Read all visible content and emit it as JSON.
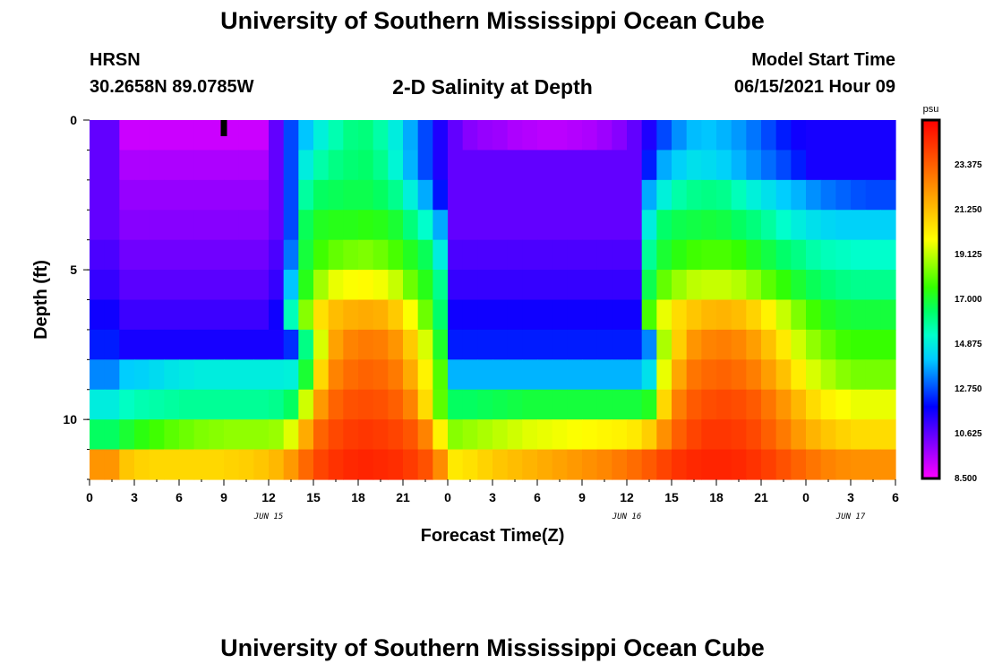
{
  "header": {
    "title_top": "University of Southern Mississippi Ocean Cube",
    "station": "HRSN",
    "coords": "30.2658N  89.0785W",
    "chart_title": "2-D Salinity at Depth",
    "model_start_label": "Model Start Time",
    "model_start_value": "06/15/2021 Hour 09"
  },
  "footer": {
    "title_bottom": "University of Southern Mississippi Ocean Cube"
  },
  "chart_data": {
    "type": "heatmap",
    "title": "2-D Salinity at Depth",
    "xlabel": "Forecast Time(Z)",
    "ylabel": "Depth (ft)",
    "x_hours": [
      0,
      54
    ],
    "y_depth_ft": [
      0,
      12
    ],
    "x_ticks": [
      {
        "h": 0,
        "label": "0"
      },
      {
        "h": 3,
        "label": "3"
      },
      {
        "h": 6,
        "label": "6"
      },
      {
        "h": 9,
        "label": "9"
      },
      {
        "h": 12,
        "label": "12"
      },
      {
        "h": 15,
        "label": "15"
      },
      {
        "h": 18,
        "label": "18"
      },
      {
        "h": 21,
        "label": "21"
      },
      {
        "h": 24,
        "label": "0"
      },
      {
        "h": 27,
        "label": "3"
      },
      {
        "h": 30,
        "label": "6"
      },
      {
        "h": 33,
        "label": "9"
      },
      {
        "h": 36,
        "label": "12"
      },
      {
        "h": 39,
        "label": "15"
      },
      {
        "h": 42,
        "label": "18"
      },
      {
        "h": 45,
        "label": "21"
      },
      {
        "h": 48,
        "label": "0"
      },
      {
        "h": 51,
        "label": "3"
      },
      {
        "h": 54,
        "label": "6"
      }
    ],
    "date_labels": [
      {
        "h": 12,
        "label": "JUN 15"
      },
      {
        "h": 36,
        "label": "JUN 16"
      },
      {
        "h": 51,
        "label": "JUN 17"
      }
    ],
    "y_ticks": [
      {
        "depth": 0,
        "label": "0"
      },
      {
        "depth": 5,
        "label": "5"
      },
      {
        "depth": 10,
        "label": "10"
      }
    ],
    "current_time_marker_h": 9,
    "colorbar": {
      "units": "psu",
      "min": 8.5,
      "max": 25.5,
      "tick_labels": [
        "8.500",
        "10.625",
        "12.750",
        "14.875",
        "17.000",
        "19.125",
        "21.250",
        "23.375"
      ],
      "colors": [
        "#ff00ff",
        "#aa00ff",
        "#5500ff",
        "#0000ff",
        "#0066ff",
        "#00ccff",
        "#00ffcc",
        "#00ff66",
        "#33ff00",
        "#99ff00",
        "#ffff00",
        "#ffcc00",
        "#ff9900",
        "#ff6600",
        "#ff3300",
        "#ff0000"
      ]
    },
    "layers": 12,
    "salinity_psu": [
      [
        10.6,
        10.6,
        9.2,
        9.2,
        9.2,
        9.2,
        9.2,
        9.2,
        9.2,
        9.2,
        9.2,
        9.2,
        10.6,
        12.7,
        14.1,
        15.0,
        15.6,
        16.1,
        16.2,
        15.7,
        14.9,
        13.8,
        12.7,
        11.5,
        10.6,
        10.1,
        9.9,
        9.8,
        9.6,
        9.5,
        9.4,
        9.4,
        9.5,
        9.6,
        9.8,
        10.1,
        10.6,
        11.5,
        12.7,
        13.5,
        14.0,
        14.1,
        13.9,
        13.6,
        13.2,
        12.7,
        12.2,
        11.7,
        11.6,
        11.6,
        11.6,
        11.6,
        11.6,
        11.6
      ],
      [
        10.6,
        10.6,
        9.6,
        9.6,
        9.6,
        9.6,
        9.6,
        9.6,
        9.6,
        9.6,
        9.6,
        9.6,
        10.6,
        12.7,
        14.9,
        15.7,
        16.1,
        16.3,
        16.4,
        16.0,
        15.1,
        13.9,
        12.7,
        11.5,
        10.6,
        10.6,
        10.6,
        10.6,
        10.6,
        10.6,
        10.6,
        10.6,
        10.6,
        10.6,
        10.6,
        10.6,
        10.6,
        12.2,
        13.8,
        14.3,
        14.6,
        14.5,
        14.3,
        13.9,
        13.5,
        13.1,
        12.7,
        12.2,
        11.6,
        11.6,
        11.6,
        11.6,
        11.6,
        11.6
      ],
      [
        10.6,
        10.6,
        9.9,
        9.9,
        9.9,
        9.9,
        9.9,
        9.9,
        9.9,
        9.9,
        9.9,
        9.9,
        10.6,
        12.7,
        15.8,
        16.5,
        16.6,
        16.7,
        16.7,
        16.5,
        16.0,
        15.0,
        13.8,
        12.1,
        10.6,
        10.6,
        10.6,
        10.6,
        10.6,
        10.6,
        10.6,
        10.6,
        10.6,
        10.6,
        10.6,
        10.6,
        10.6,
        13.8,
        15.0,
        15.7,
        16.0,
        16.1,
        16.0,
        15.5,
        15.0,
        14.6,
        14.2,
        13.9,
        13.5,
        13.2,
        13.0,
        12.8,
        12.7,
        12.7
      ],
      [
        10.6,
        10.6,
        10.1,
        10.1,
        10.1,
        10.1,
        10.1,
        10.1,
        10.1,
        10.1,
        10.1,
        10.1,
        10.6,
        12.7,
        16.6,
        17.2,
        17.3,
        17.3,
        17.4,
        17.3,
        17.0,
        16.2,
        15.3,
        13.8,
        10.6,
        10.6,
        10.6,
        10.6,
        10.6,
        10.6,
        10.6,
        10.6,
        10.6,
        10.6,
        10.6,
        10.6,
        10.6,
        14.9,
        16.4,
        16.7,
        16.8,
        16.9,
        16.8,
        16.5,
        16.2,
        15.8,
        15.3,
        14.9,
        14.6,
        14.4,
        14.3,
        14.3,
        14.3,
        14.3
      ],
      [
        10.9,
        10.9,
        10.4,
        10.4,
        10.4,
        10.4,
        10.4,
        10.4,
        10.4,
        10.4,
        10.4,
        10.4,
        10.9,
        13.2,
        16.9,
        17.7,
        18.1,
        18.3,
        18.4,
        18.2,
        17.8,
        17.2,
        16.6,
        14.9,
        10.9,
        10.9,
        10.9,
        10.9,
        10.9,
        10.9,
        10.9,
        10.9,
        10.9,
        10.9,
        10.9,
        10.9,
        10.9,
        15.9,
        17.0,
        17.4,
        17.7,
        17.8,
        17.8,
        17.6,
        17.2,
        16.8,
        16.4,
        16.1,
        15.7,
        15.5,
        15.4,
        15.3,
        15.3,
        15.3
      ],
      [
        11.2,
        11.2,
        10.7,
        10.7,
        10.7,
        10.7,
        10.7,
        10.7,
        10.7,
        10.7,
        10.7,
        10.7,
        11.2,
        14.1,
        17.3,
        18.8,
        19.6,
        19.8,
        19.9,
        19.7,
        19.2,
        18.2,
        17.3,
        16.0,
        11.2,
        11.2,
        11.2,
        11.2,
        11.2,
        11.2,
        11.2,
        11.2,
        11.2,
        11.2,
        11.2,
        11.2,
        11.2,
        16.7,
        18.1,
        18.7,
        19.1,
        19.2,
        19.2,
        19.0,
        18.6,
        18.0,
        17.5,
        17.0,
        16.6,
        16.3,
        16.1,
        16.0,
        16.0,
        16.0
      ],
      [
        11.7,
        11.7,
        11.1,
        11.1,
        11.1,
        11.1,
        11.1,
        11.1,
        11.1,
        11.1,
        11.1,
        11.1,
        11.7,
        15.5,
        18.5,
        20.5,
        21.3,
        21.6,
        21.7,
        21.6,
        21.0,
        19.8,
        18.2,
        16.4,
        11.7,
        11.7,
        11.7,
        11.7,
        11.7,
        11.7,
        11.7,
        11.7,
        11.7,
        11.7,
        11.7,
        11.7,
        11.7,
        17.8,
        19.6,
        20.6,
        21.1,
        21.4,
        21.5,
        21.3,
        20.8,
        20.1,
        19.2,
        18.4,
        17.7,
        17.2,
        17.0,
        16.9,
        16.9,
        16.9
      ],
      [
        12.2,
        12.2,
        11.6,
        11.6,
        11.6,
        11.6,
        11.6,
        11.6,
        11.6,
        11.6,
        11.6,
        11.6,
        11.6,
        12.4,
        16.1,
        19.4,
        21.9,
        22.6,
        22.8,
        22.7,
        22.2,
        21.0,
        19.4,
        17.1,
        12.2,
        12.2,
        12.2,
        12.2,
        12.2,
        12.2,
        12.2,
        12.2,
        12.2,
        12.2,
        12.2,
        12.2,
        12.2,
        13.4,
        18.9,
        20.9,
        22.2,
        22.6,
        22.7,
        22.5,
        22.0,
        21.2,
        20.3,
        19.3,
        18.6,
        18.1,
        17.7,
        17.6,
        17.6,
        17.6
      ],
      [
        13.4,
        13.4,
        14.2,
        14.3,
        14.5,
        14.7,
        14.8,
        14.9,
        14.9,
        14.9,
        14.9,
        14.9,
        14.9,
        15.0,
        17.0,
        20.7,
        22.6,
        23.1,
        23.3,
        23.2,
        22.8,
        21.7,
        20.1,
        17.9,
        13.9,
        13.9,
        13.9,
        13.9,
        13.9,
        13.9,
        13.9,
        13.9,
        13.9,
        13.9,
        13.9,
        13.9,
        13.9,
        14.6,
        19.6,
        21.8,
        22.9,
        23.2,
        23.3,
        23.1,
        22.7,
        22.0,
        21.2,
        20.2,
        19.4,
        18.9,
        18.5,
        18.3,
        18.3,
        18.3
      ],
      [
        14.9,
        14.9,
        15.4,
        15.6,
        15.7,
        15.8,
        15.9,
        15.9,
        15.9,
        15.9,
        15.9,
        15.9,
        16.0,
        16.5,
        19.3,
        22.1,
        23.3,
        23.7,
        23.8,
        23.7,
        23.4,
        22.6,
        20.6,
        18.0,
        16.5,
        16.5,
        16.6,
        16.7,
        16.8,
        16.9,
        16.9,
        16.9,
        16.9,
        16.9,
        16.9,
        16.9,
        16.9,
        17.2,
        20.7,
        22.7,
        23.5,
        23.8,
        23.9,
        23.8,
        23.5,
        22.9,
        22.2,
        21.4,
        20.6,
        20.1,
        19.8,
        19.6,
        19.6,
        19.6
      ],
      [
        16.5,
        16.5,
        17.0,
        17.4,
        17.7,
        18.0,
        18.2,
        18.4,
        18.5,
        18.6,
        18.6,
        18.6,
        18.7,
        19.5,
        21.7,
        23.3,
        23.9,
        24.2,
        24.3,
        24.2,
        24.0,
        23.6,
        22.6,
        20.1,
        18.5,
        18.7,
        18.9,
        19.1,
        19.3,
        19.5,
        19.6,
        19.7,
        19.8,
        19.9,
        20.0,
        20.1,
        20.3,
        20.9,
        22.3,
        23.4,
        24.0,
        24.3,
        24.3,
        24.2,
        23.9,
        23.4,
        22.8,
        22.1,
        21.5,
        21.1,
        20.8,
        20.6,
        20.6,
        20.6
      ],
      [
        22.2,
        22.2,
        21.1,
        20.8,
        20.7,
        20.7,
        20.7,
        20.7,
        20.7,
        20.8,
        20.9,
        21.1,
        21.4,
        22.1,
        23.2,
        24.0,
        24.4,
        24.6,
        24.7,
        24.6,
        24.5,
        24.2,
        23.7,
        22.4,
        20.3,
        20.5,
        20.8,
        21.1,
        21.3,
        21.5,
        21.7,
        21.9,
        22.1,
        22.3,
        22.5,
        22.8,
        23.1,
        23.5,
        24.0,
        24.4,
        24.6,
        24.7,
        24.7,
        24.6,
        24.4,
        24.1,
        23.7,
        23.3,
        22.9,
        22.6,
        22.4,
        22.3,
        22.3,
        22.3
      ]
    ]
  }
}
